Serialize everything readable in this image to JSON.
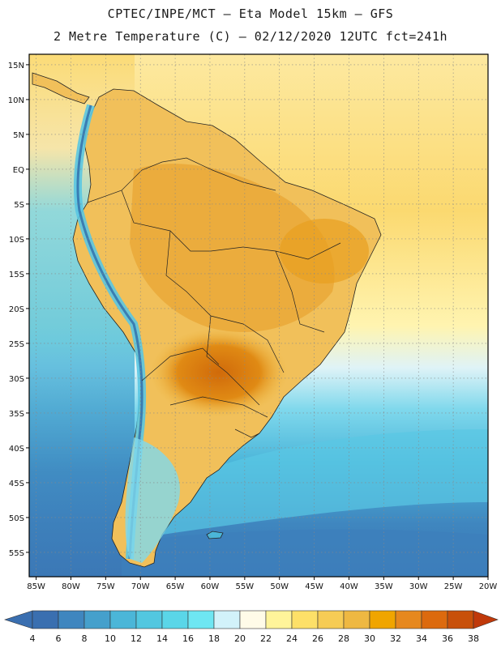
{
  "header": {
    "line1": "CPTEC/INPE/MCT –  Eta Model 15km – GFS",
    "line2": "2 Metre Temperature (C) – 02/12/2020 12UTC fct=241h"
  },
  "map": {
    "lon_range": [
      -86,
      -20
    ],
    "lat_range": [
      -58.5,
      16.5
    ],
    "lon_ticks": [
      "85W",
      "80W",
      "75W",
      "70W",
      "65W",
      "60W",
      "55W",
      "50W",
      "45W",
      "40W",
      "35W",
      "30W",
      "25W",
      "20W"
    ],
    "lon_tick_values": [
      -85,
      -80,
      -75,
      -70,
      -65,
      -60,
      -55,
      -50,
      -45,
      -40,
      -35,
      -30,
      -25,
      -20
    ],
    "lat_ticks": [
      "15N",
      "10N",
      "5N",
      "EQ",
      "5S",
      "10S",
      "15S",
      "20S",
      "25S",
      "30S",
      "35S",
      "40S",
      "45S",
      "50S",
      "55S"
    ],
    "lat_tick_values": [
      15,
      10,
      5,
      0,
      -5,
      -10,
      -15,
      -20,
      -25,
      -30,
      -35,
      -40,
      -45,
      -50,
      -55
    ]
  },
  "colorbar": {
    "labels": [
      "4",
      "6",
      "8",
      "10",
      "12",
      "14",
      "16",
      "18",
      "20",
      "22",
      "24",
      "26",
      "28",
      "30",
      "32",
      "34",
      "36",
      "38"
    ],
    "colors": [
      "#3a6fb0",
      "#3f86bf",
      "#45a0cc",
      "#4bb6d8",
      "#52c7e0",
      "#5ad6e8",
      "#6ee6f2",
      "#d2f2fa",
      "#fffbe8",
      "#fff49a",
      "#fde068",
      "#f6cc55",
      "#eeb842",
      "#f0a500",
      "#e6881e",
      "#dc6a0e",
      "#c8500a"
    ],
    "left_arrow_color": "#3a6fb0",
    "right_arrow_color": "#c0390a"
  },
  "colors": {
    "ocean_cold": "#3b79b8",
    "ocean_mid": "#4fb0d8",
    "land_hot": "#e4900a",
    "frame": "#000000"
  }
}
